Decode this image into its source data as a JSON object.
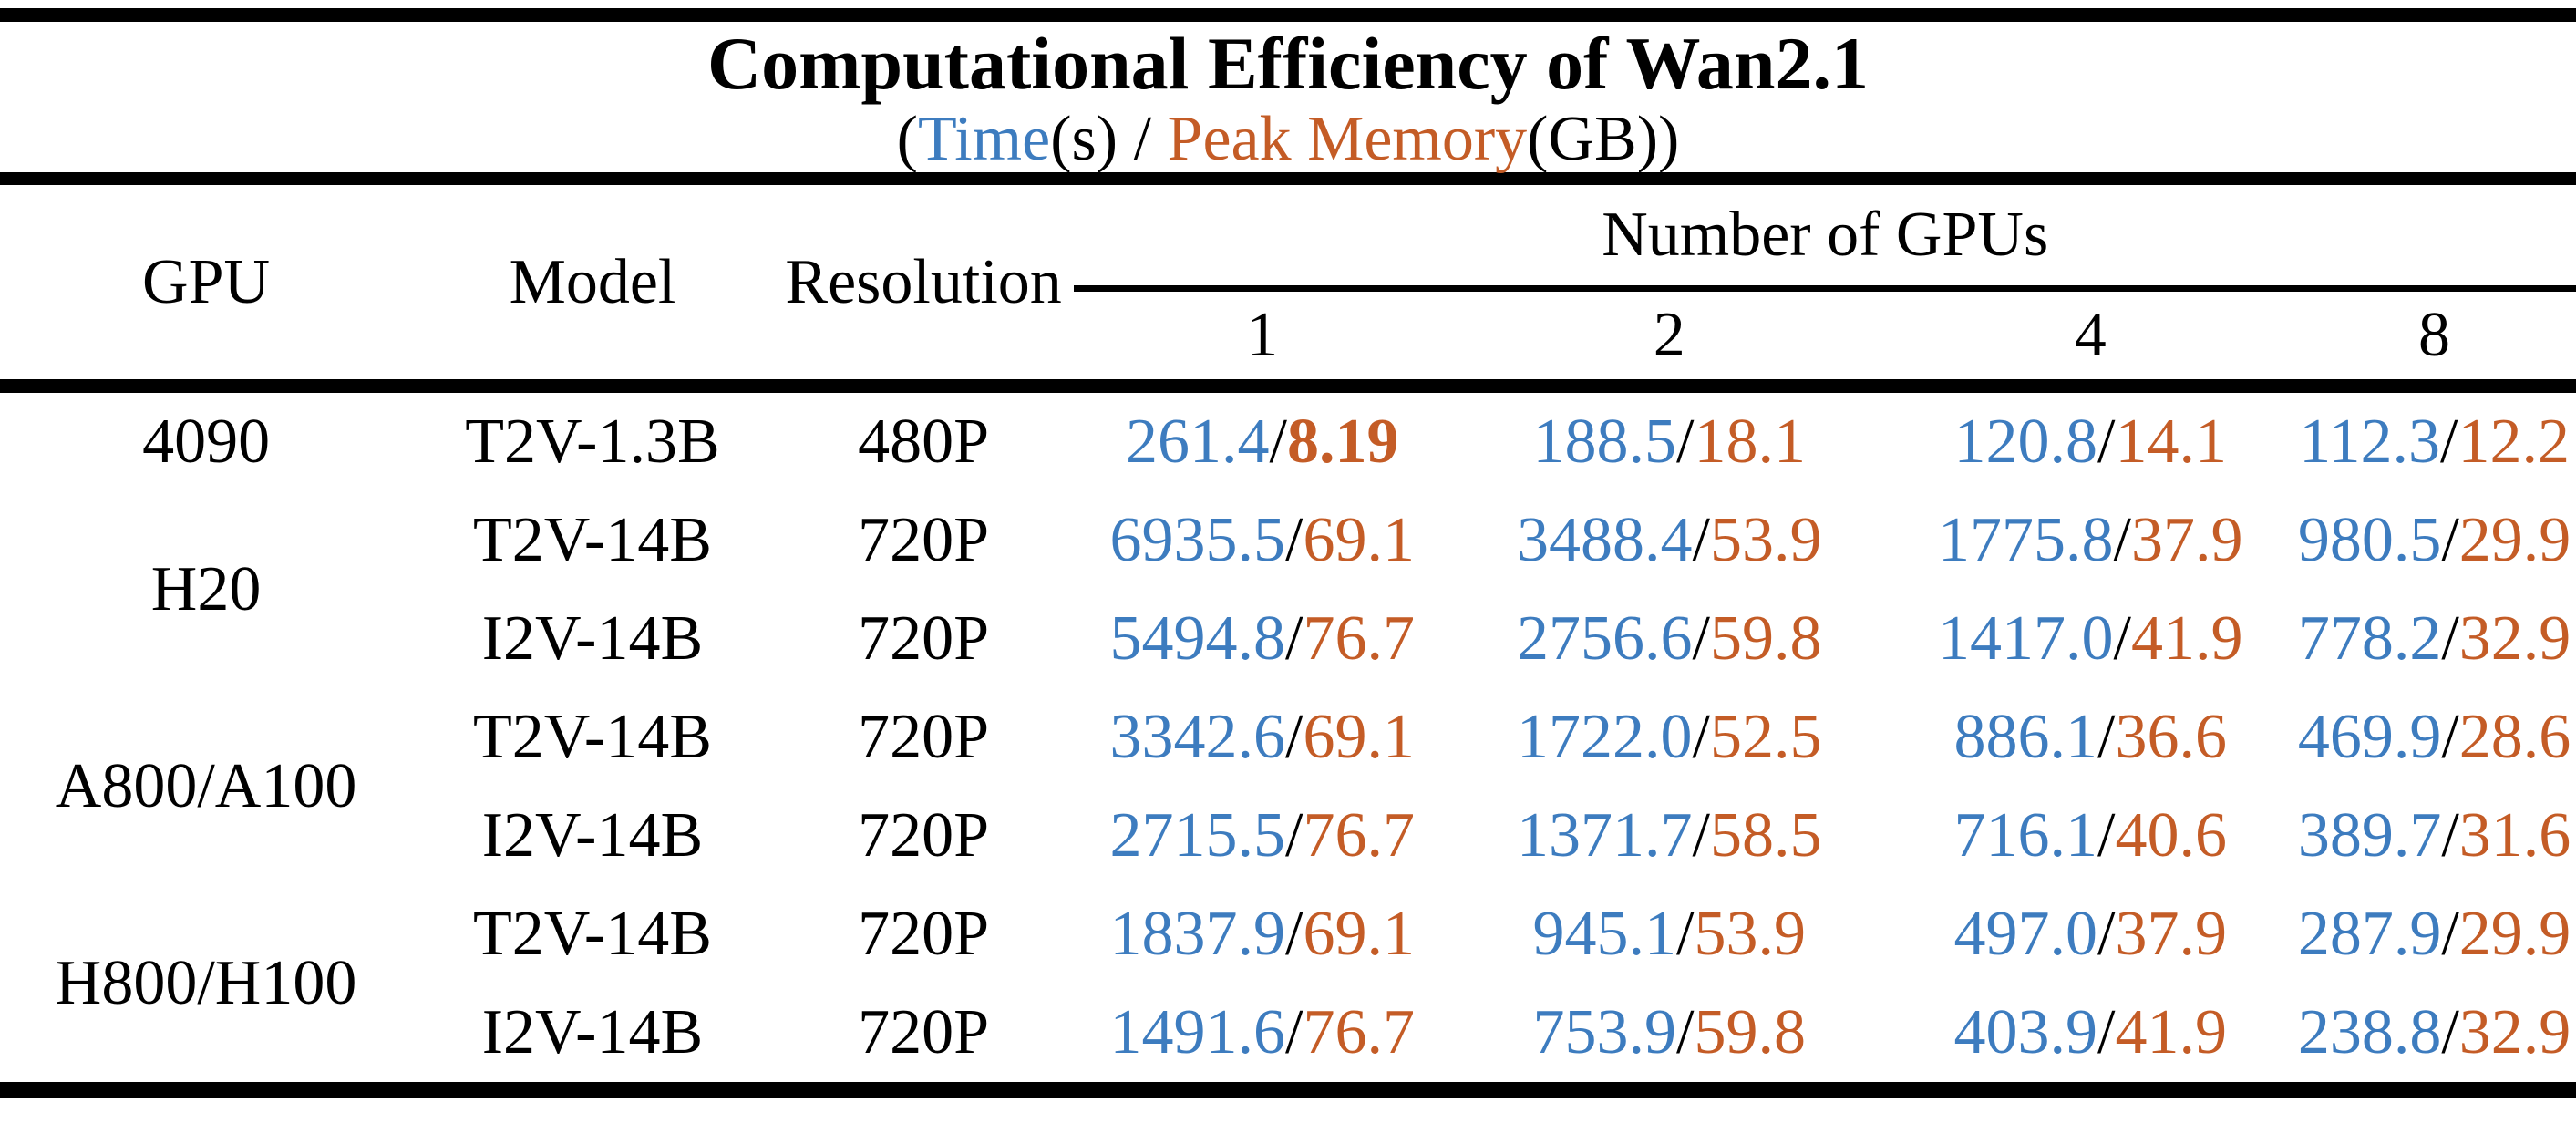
{
  "table": {
    "title": "Computational Efficiency of Wan2.1",
    "subtitle": {
      "open_paren": "(",
      "time_label": "Time",
      "time_unit": "(s)",
      "separator": " / ",
      "memory_label": "Peak Memory",
      "memory_unit": "(GB))"
    },
    "columns": {
      "gpu": "GPU",
      "model": "Model",
      "resolution": "Resolution",
      "gpus_group": "Number of GPUs",
      "gpu_counts": [
        "1",
        "2",
        "4",
        "8"
      ]
    },
    "colors": {
      "time": "#3D7CBF",
      "memory": "#C45C26",
      "text": "#000000",
      "background": "#FFFFFF"
    },
    "rows": [
      {
        "gpu": "4090",
        "gpu_rowspan": 1,
        "model": "T2V-1.3B",
        "resolution": "480P",
        "cells": [
          {
            "time": "261.4",
            "memory": "8.19",
            "memory_bold": true
          },
          {
            "time": "188.5",
            "memory": "18.1"
          },
          {
            "time": "120.8",
            "memory": "14.1"
          },
          {
            "time": "112.3",
            "memory": "12.2"
          }
        ]
      },
      {
        "gpu": "H20",
        "gpu_rowspan": 2,
        "model": "T2V-14B",
        "resolution": "720P",
        "cells": [
          {
            "time": "6935.5",
            "memory": "69.1"
          },
          {
            "time": "3488.4",
            "memory": "53.9"
          },
          {
            "time": "1775.8",
            "memory": "37.9"
          },
          {
            "time": "980.5",
            "memory": "29.9"
          }
        ]
      },
      {
        "model": "I2V-14B",
        "resolution": "720P",
        "cells": [
          {
            "time": "5494.8",
            "memory": "76.7"
          },
          {
            "time": "2756.6",
            "memory": "59.8"
          },
          {
            "time": "1417.0",
            "memory": "41.9"
          },
          {
            "time": "778.2",
            "memory": "32.9"
          }
        ]
      },
      {
        "gpu": "A800/A100",
        "gpu_rowspan": 2,
        "model": "T2V-14B",
        "resolution": "720P",
        "cells": [
          {
            "time": "3342.6",
            "memory": "69.1"
          },
          {
            "time": "1722.0",
            "memory": "52.5"
          },
          {
            "time": "886.1",
            "memory": "36.6"
          },
          {
            "time": "469.9",
            "memory": "28.6"
          }
        ]
      },
      {
        "model": "I2V-14B",
        "resolution": "720P",
        "cells": [
          {
            "time": "2715.5",
            "memory": "76.7"
          },
          {
            "time": "1371.7",
            "memory": "58.5"
          },
          {
            "time": "716.1",
            "memory": "40.6"
          },
          {
            "time": "389.7",
            "memory": "31.6"
          }
        ]
      },
      {
        "gpu": "H800/H100",
        "gpu_rowspan": 2,
        "model": "T2V-14B",
        "resolution": "720P",
        "cells": [
          {
            "time": "1837.9",
            "memory": "69.1"
          },
          {
            "time": "945.1",
            "memory": "53.9"
          },
          {
            "time": "497.0",
            "memory": "37.9"
          },
          {
            "time": "287.9",
            "memory": "29.9"
          }
        ]
      },
      {
        "model": "I2V-14B",
        "resolution": "720P",
        "cells": [
          {
            "time": "1491.6",
            "memory": "76.7"
          },
          {
            "time": "753.9",
            "memory": "59.8"
          },
          {
            "time": "403.9",
            "memory": "41.9"
          },
          {
            "time": "238.8",
            "memory": "32.9"
          }
        ]
      }
    ]
  }
}
